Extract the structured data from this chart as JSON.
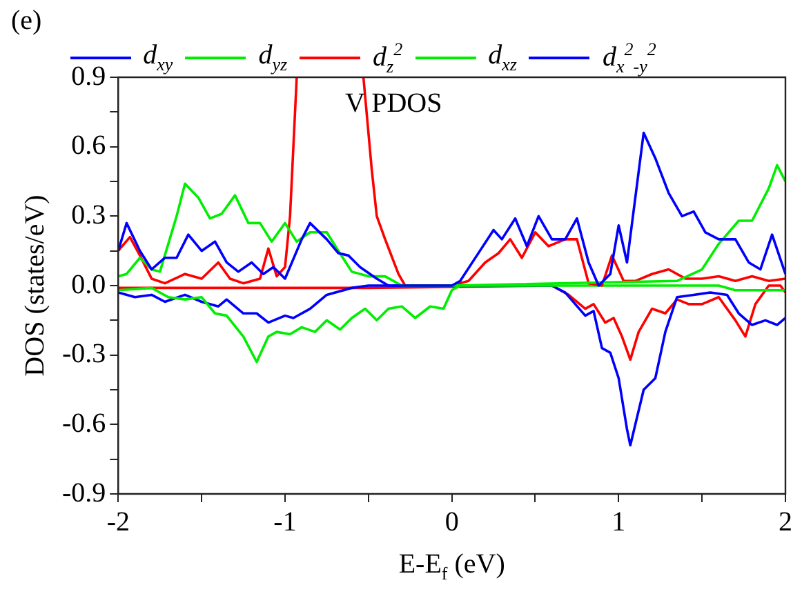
{
  "chart_data": {
    "type": "line",
    "ylabel": "DOS (states/eV)",
    "xlabel": "E-E$_{f}$ (eV)",
    "annotations": [
      "(e)",
      "V PDOS"
    ],
    "xlim": [
      -2,
      2
    ],
    "xticks": [
      -2,
      {
        "value": -1.5,
        "label": null
      },
      -1,
      {
        "value": -0.5,
        "label": null
      },
      0,
      {
        "value": 0.5,
        "label": null
      },
      1,
      {
        "value": 1.5,
        "label": null
      },
      2
    ],
    "ylim": [
      -0.9,
      0.9
    ],
    "yticks": [
      -0.9,
      {
        "value": -0.75,
        "label": null
      },
      -0.6,
      {
        "value": -0.45,
        "label": null
      },
      -0.3,
      {
        "value": -0.15,
        "label": null
      },
      {
        "value": 0,
        "label": "0.0"
      },
      {
        "value": 0.15,
        "label": null
      },
      0.3,
      {
        "value": 0.45,
        "label": null
      },
      0.6,
      {
        "value": 0.75,
        "label": null
      },
      0.9
    ],
    "grid": false,
    "legend": "top",
    "marker": "none",
    "line_style": "solid",
    "series": [
      {
        "name": "d$_{xy}$",
        "color": "#0000ff",
        "x": [
          -2,
          -1.95,
          -1.87,
          -1.8,
          -1.72,
          -1.65,
          -1.58,
          -1.5,
          -1.42,
          -1.35,
          -1.28,
          -1.2,
          -1.13,
          -1.07,
          -1,
          -0.9,
          -0.85,
          -0.75,
          -0.68,
          -0.62,
          -0.55,
          -0.45,
          -0.38,
          0,
          0.05,
          0.15,
          0.25,
          0.3,
          0.38,
          0.45,
          0.52,
          0.6,
          0.68,
          0.75,
          0.82,
          0.88,
          0.95,
          1,
          1.05,
          1.15,
          1.22,
          1.3,
          1.38,
          1.45,
          1.52,
          1.6,
          1.7,
          1.78,
          1.85,
          1.92,
          2
        ],
        "values": [
          0.15,
          0.27,
          0.15,
          0.07,
          0.12,
          0.12,
          0.22,
          0.15,
          0.19,
          0.1,
          0.06,
          0.1,
          0.05,
          0.08,
          0.03,
          0.2,
          0.27,
          0.2,
          0.14,
          0.13,
          0.08,
          0.03,
          0,
          0,
          0.02,
          0.13,
          0.24,
          0.2,
          0.29,
          0.17,
          0.3,
          0.2,
          0.2,
          0.29,
          0.1,
          0,
          0.05,
          0.26,
          0.1,
          0.66,
          0.55,
          0.4,
          0.3,
          0.32,
          0.23,
          0.2,
          0.2,
          0.1,
          0.07,
          0.22,
          0.05
        ]
      },
      {
        "name": "d$_{yz}$",
        "color": "#00ee00",
        "x": [
          -2,
          -1.95,
          -1.87,
          -1.8,
          -1.75,
          -1.65,
          -1.6,
          -1.52,
          -1.45,
          -1.38,
          -1.3,
          -1.22,
          -1.15,
          -1.08,
          -1,
          -0.93,
          -0.85,
          -0.75,
          -0.68,
          -0.6,
          -0.5,
          -0.4,
          -0.3,
          0,
          1.35,
          1.5,
          1.6,
          1.72,
          1.8,
          1.9,
          1.95,
          2
        ],
        "values": [
          0.04,
          0.05,
          0.12,
          0.07,
          0.06,
          0.3,
          0.44,
          0.38,
          0.29,
          0.31,
          0.39,
          0.27,
          0.27,
          0.19,
          0.27,
          0.19,
          0.23,
          0.23,
          0.15,
          0.06,
          0.04,
          0.04,
          0,
          0,
          0.02,
          0.07,
          0.18,
          0.28,
          0.28,
          0.42,
          0.52,
          0.45
        ]
      },
      {
        "name": "d$_{z}$$^{2}$",
        "color": "#ff0000",
        "x": [
          -2,
          -1.93,
          -1.87,
          -1.8,
          -1.72,
          -1.6,
          -1.5,
          -1.4,
          -1.33,
          -1.25,
          -1.15,
          -1.1,
          -1.05,
          -1,
          -0.97,
          -0.93,
          -0.7,
          -0.53,
          -0.48,
          -0.45,
          -0.4,
          -0.32,
          -0.28,
          0,
          0.1,
          0.2,
          0.28,
          0.35,
          0.42,
          0.5,
          0.58,
          0.68,
          0.75,
          0.82,
          0.9,
          0.96,
          1.03,
          1.1,
          1.2,
          1.3,
          1.4,
          1.5,
          1.6,
          1.7,
          1.8,
          1.9,
          2
        ],
        "values": [
          0.15,
          0.21,
          0.13,
          0.03,
          0.01,
          0.05,
          0.03,
          0.1,
          0.03,
          0.01,
          0.03,
          0.16,
          0.04,
          0.08,
          0.3,
          0.9,
          null,
          0.9,
          0.5,
          0.3,
          0.2,
          0.05,
          0,
          0,
          0.02,
          0.1,
          0.14,
          0.2,
          0.12,
          0.23,
          0.17,
          0.2,
          0.2,
          0.01,
          0,
          0.13,
          0.02,
          0.02,
          0.05,
          0.07,
          0.03,
          0.03,
          0.04,
          0.02,
          0.04,
          0.02,
          0.03
        ]
      },
      {
        "name": "d$_{xz}$",
        "color": "#00ee00",
        "x": [
          -2,
          -1.8,
          -1.7,
          -1.6,
          -1.5,
          -1.42,
          -1.35,
          -1.25,
          -1.17,
          -1.1,
          -1.05,
          -0.97,
          -0.9,
          -0.82,
          -0.75,
          -0.67,
          -0.6,
          -0.52,
          -0.45,
          -0.38,
          -0.3,
          -0.22,
          -0.13,
          -0.05,
          0,
          0.05,
          1.6,
          1.7,
          2
        ],
        "values": [
          -0.02,
          -0.01,
          -0.05,
          -0.06,
          -0.05,
          -0.12,
          -0.13,
          -0.22,
          -0.33,
          -0.22,
          -0.2,
          -0.21,
          -0.18,
          -0.2,
          -0.15,
          -0.19,
          -0.14,
          -0.1,
          -0.15,
          -0.1,
          -0.09,
          -0.14,
          -0.09,
          -0.1,
          -0.02,
          0,
          0,
          -0.02,
          -0.02
        ]
      },
      {
        "name": "d$_{x}$$^{2}$$_{-y}$$^{2}$",
        "color": "#0000ff",
        "x": [
          -2,
          -1.9,
          -1.8,
          -1.72,
          -1.6,
          -1.5,
          -1.4,
          -1.35,
          -1.25,
          -1.17,
          -1.1,
          -1,
          -0.95,
          -0.85,
          -0.75,
          -0.6,
          -0.5,
          0.6,
          0.68,
          0.8,
          0.85,
          0.9,
          0.95,
          1,
          1.05,
          1.07,
          1.1,
          1.15,
          1.22,
          1.28,
          1.35,
          1.45,
          1.55,
          1.65,
          1.72,
          1.8,
          1.88,
          1.95,
          2
        ],
        "values": [
          -0.03,
          -0.05,
          -0.04,
          -0.07,
          -0.04,
          -0.07,
          -0.09,
          -0.06,
          -0.12,
          -0.12,
          -0.16,
          -0.13,
          -0.14,
          -0.1,
          -0.04,
          -0.01,
          0,
          0,
          -0.03,
          -0.13,
          -0.11,
          -0.27,
          -0.29,
          -0.4,
          -0.62,
          -0.69,
          -0.6,
          -0.45,
          -0.4,
          -0.2,
          -0.05,
          -0.04,
          -0.03,
          -0.04,
          -0.12,
          -0.17,
          -0.15,
          -0.17,
          -0.14
        ]
      },
      {
        "color": "#ff0000",
        "x": [
          -2,
          -0.5,
          0.6,
          0.7,
          0.8,
          0.85,
          0.92,
          0.97,
          1.02,
          1.07,
          1.12,
          1.2,
          1.28,
          1.35,
          1.42,
          1.5,
          1.6,
          1.7,
          1.76,
          1.82,
          1.9,
          1.97,
          2
        ],
        "values": [
          -0.01,
          -0.01,
          0,
          -0.04,
          -0.1,
          -0.08,
          -0.16,
          -0.14,
          -0.22,
          -0.32,
          -0.2,
          -0.1,
          -0.12,
          -0.06,
          -0.08,
          -0.08,
          -0.05,
          -0.15,
          -0.22,
          -0.08,
          0,
          0,
          -0.03
        ]
      }
    ]
  }
}
